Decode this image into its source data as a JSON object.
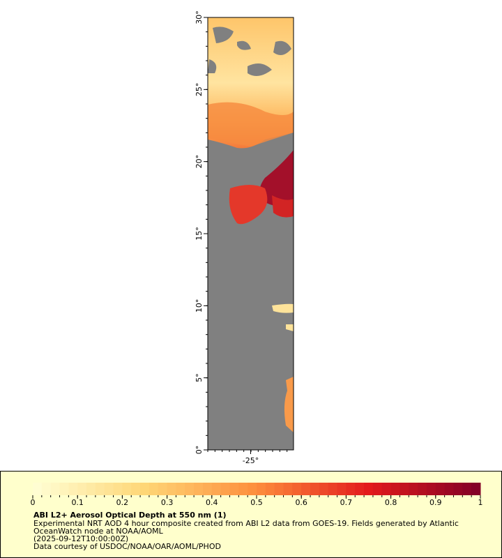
{
  "chart_data": {
    "type": "map",
    "xlim": [
      -28,
      -22
    ],
    "xticks": [
      {
        "value": -25,
        "label": "-25°"
      }
    ],
    "ylim": [
      0,
      30
    ],
    "yticks": [
      {
        "value": 0,
        "label": "0°"
      },
      {
        "value": 5,
        "label": "5°"
      },
      {
        "value": 10,
        "label": "10°"
      },
      {
        "value": 15,
        "label": "15°"
      },
      {
        "value": 20,
        "label": "20°"
      },
      {
        "value": 25,
        "label": "25°"
      },
      {
        "value": 30,
        "label": "30°"
      }
    ],
    "colorbar": {
      "lim": [
        0,
        1
      ],
      "ticks": [
        0,
        0.1,
        0.2,
        0.3,
        0.4,
        0.5,
        0.6,
        0.7,
        0.8,
        0.9,
        1
      ]
    },
    "title": "ABI L2+ Aerosol Optical Depth at 550 nm (1)",
    "caption": [
      "Experimental NRT AOD 4 hour composite created from ABI L2 data from GOES-19. Fields generated by Atlantic",
      "OceanWatch node at NOAA/AOML",
      "(2025-09-12T10:00:00Z)",
      "Data courtesy of USDOC/NOAA/OAR/AOML/PHOD"
    ]
  }
}
